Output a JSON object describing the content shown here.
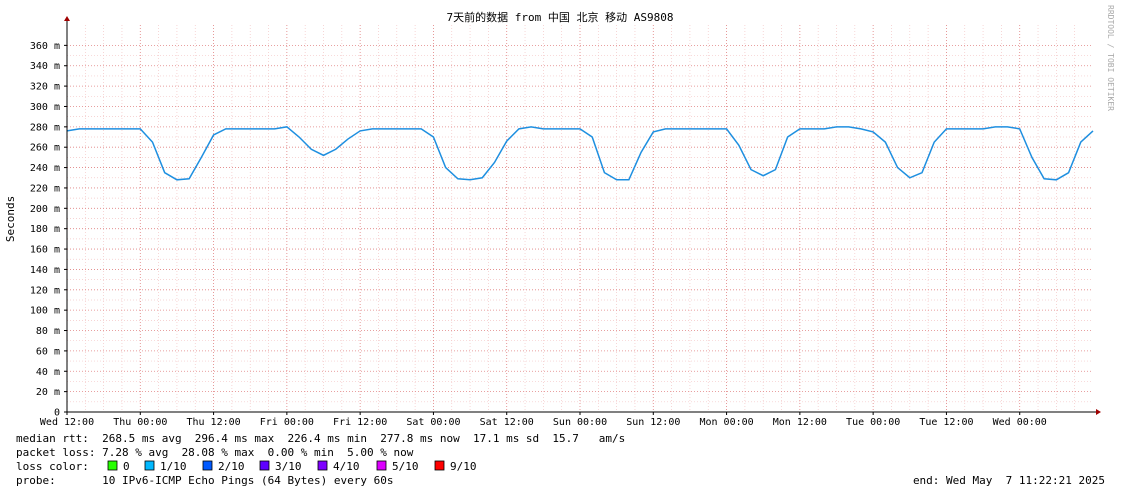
{
  "chart_data": {
    "type": "line",
    "title": "7天前的数据 from 中国 北京 移动 AS9808",
    "y_label": "Seconds",
    "watermark": "RRDTOOL / TOBI OETIKER",
    "x": [
      0,
      2,
      4,
      6,
      8,
      10,
      12,
      14,
      16,
      18,
      20,
      22,
      24,
      26,
      28,
      30,
      32,
      34,
      36,
      38,
      40,
      42,
      44,
      46,
      48,
      50,
      52,
      54,
      56,
      58,
      60,
      62,
      64,
      66,
      68,
      70,
      72,
      74,
      76,
      78,
      80,
      82,
      84,
      86,
      88,
      90,
      92,
      94,
      96,
      98,
      100,
      102,
      104,
      106,
      108,
      110,
      112,
      114,
      116,
      118,
      120,
      122,
      124,
      126,
      128,
      130,
      132,
      134,
      136,
      138,
      140,
      142,
      144,
      146,
      148,
      150,
      152,
      154,
      156,
      158,
      160,
      162,
      164,
      166,
      168
    ],
    "series": [
      {
        "name": "median rtt",
        "color": "#1e8fe0",
        "values": [
          276,
          278,
          278,
          278,
          278,
          278,
          278,
          265,
          235,
          228,
          229,
          250,
          272,
          278,
          278,
          278,
          278,
          278,
          280,
          270,
          258,
          252,
          258,
          268,
          276,
          278,
          278,
          278,
          278,
          278,
          270,
          240,
          229,
          228,
          230,
          245,
          266,
          278,
          280,
          278,
          278,
          278,
          278,
          270,
          235,
          228,
          228,
          255,
          275,
          278,
          278,
          278,
          278,
          278,
          278,
          262,
          238,
          232,
          238,
          270,
          278,
          278,
          278,
          280,
          280,
          278,
          275,
          265,
          240,
          230,
          235,
          265,
          278,
          278,
          278,
          278,
          280,
          280,
          278,
          250,
          229,
          228,
          235,
          265,
          276
        ]
      }
    ],
    "xlim": [
      0,
      168
    ],
    "xticks": [
      {
        "value": 0,
        "label": "Wed 12:00"
      },
      {
        "value": 12,
        "label": "Thu 00:00"
      },
      {
        "value": 24,
        "label": "Thu 12:00"
      },
      {
        "value": 36,
        "label": "Fri 00:00"
      },
      {
        "value": 48,
        "label": "Fri 12:00"
      },
      {
        "value": 60,
        "label": "Sat 00:00"
      },
      {
        "value": 72,
        "label": "Sat 12:00"
      },
      {
        "value": 84,
        "label": "Sun 00:00"
      },
      {
        "value": 96,
        "label": "Sun 12:00"
      },
      {
        "value": 108,
        "label": "Mon 00:00"
      },
      {
        "value": 120,
        "label": "Mon 12:00"
      },
      {
        "value": 132,
        "label": "Tue 00:00"
      },
      {
        "value": 144,
        "label": "Tue 12:00"
      },
      {
        "value": 156,
        "label": "Wed 00:00"
      }
    ],
    "ylim": [
      0,
      380
    ],
    "yticks": [
      0,
      {
        "value": 20,
        "label": "20 m"
      },
      {
        "value": 40,
        "label": "40 m"
      },
      {
        "value": 60,
        "label": "60 m"
      },
      {
        "value": 80,
        "label": "80 m"
      },
      {
        "value": 100,
        "label": "100 m"
      },
      {
        "value": 120,
        "label": "120 m"
      },
      {
        "value": 140,
        "label": "140 m"
      },
      {
        "value": 160,
        "label": "160 m"
      },
      {
        "value": 180,
        "label": "180 m"
      },
      {
        "value": 200,
        "label": "200 m"
      },
      {
        "value": 220,
        "label": "220 m"
      },
      {
        "value": 240,
        "label": "240 m"
      },
      {
        "value": 260,
        "label": "260 m"
      },
      {
        "value": 280,
        "label": "280 m"
      },
      {
        "value": 300,
        "label": "300 m"
      },
      {
        "value": 320,
        "label": "320 m"
      },
      {
        "value": 340,
        "label": "340 m"
      },
      {
        "value": 360,
        "label": "360 m"
      }
    ],
    "grid": true,
    "stats": [
      "median rtt:  268.5 ms avg  296.4 ms max  226.4 ms min  277.8 ms now  17.1 ms sd  15.7   am/s",
      "packet loss: 7.28 % avg  28.08 % max  0.00 % min  5.00 % now"
    ],
    "loss_color_label": "loss color:",
    "loss_colors": [
      {
        "name": "0",
        "color": "#26ff00"
      },
      {
        "name": "1/10",
        "color": "#00b8ff"
      },
      {
        "name": "2/10",
        "color": "#0059ff"
      },
      {
        "name": "3/10",
        "color": "#5e00ff"
      },
      {
        "name": "4/10",
        "color": "#7e00ff"
      },
      {
        "name": "5/10",
        "color": "#dd00ff"
      },
      {
        "name": "9/10",
        "color": "#ff0000"
      }
    ],
    "probe": "probe:       10 IPv6-ICMP Echo Pings (64 Bytes) every 60s",
    "end": "end: Wed May  7 11:22:21 2025"
  }
}
